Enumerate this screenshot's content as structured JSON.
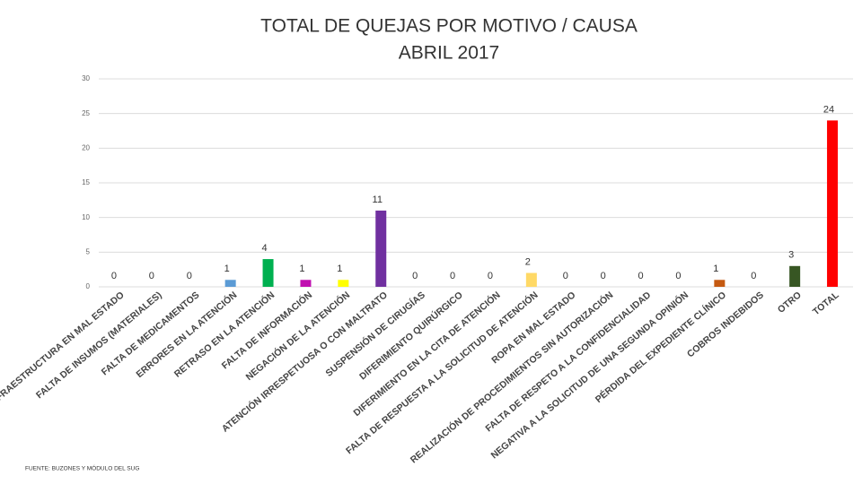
{
  "chart_data": {
    "type": "bar",
    "title": "TOTAL DE QUEJAS POR MOTIVO / CAUSA",
    "subtitle": "ABRIL 2017",
    "source": "FUENTE: BUZONES Y MÓDULO DEL SUG",
    "categories": [
      "INFRAESTRUCTURA EN MAL ESTADO",
      "FALTA DE INSUMOS (MATERIALES)",
      "FALTA DE MEDICAMENTOS",
      "ERRORES EN LA ATENCIÓN",
      "RETRASO EN LA ATENCIÓN",
      "FALTA DE INFORMACIÓN",
      "NEGACIÓN DE LA ATENCIÓN",
      "ATENCIÓN IRRESPETUOSA O CON MALTRATO",
      "SUSPENSIÓN DE CIRUGÍAS",
      "DIFERIMIENTO QUIRÚRGICO",
      "DIFERIMIENTO EN LA CITA DE ATENCIÓN",
      "FALTA DE RESPUESTA A LA SOLICITUD DE ATENCIÓN",
      "ROPA EN MAL ESTADO",
      "REALIZACIÓN DE PROCEDIMIENTOS SIN AUTORIZACIÓN",
      "FALTA DE RESPETO A LA CONFIDENCIALIDAD",
      "NEGATIVA A LA SOLICITUD DE UNA SEGUNDA OPINIÓN",
      "PÉRDIDA DEL EXPEDIENTE CLÍNICO",
      "COBROS INDEBIDOS",
      "OTRO",
      "TOTAL"
    ],
    "values": [
      0,
      0,
      0,
      1,
      4,
      1,
      1,
      11,
      0,
      0,
      0,
      2,
      0,
      0,
      0,
      0,
      1,
      0,
      3,
      24
    ],
    "colors": [
      "#a5a5a5",
      "#a5a5a5",
      "#a5a5a5",
      "#5b9bd5",
      "#00b050",
      "#c00fb0",
      "#ffff00",
      "#7030a0",
      "#a5a5a5",
      "#a5a5a5",
      "#a5a5a5",
      "#ffd966",
      "#a5a5a5",
      "#a5a5a5",
      "#a5a5a5",
      "#a5a5a5",
      "#c55a11",
      "#a5a5a5",
      "#375623",
      "#ff0000"
    ],
    "ylim": [
      0,
      30
    ],
    "yticks": [
      0,
      5,
      10,
      15,
      20,
      25,
      30
    ],
    "grid": true
  }
}
